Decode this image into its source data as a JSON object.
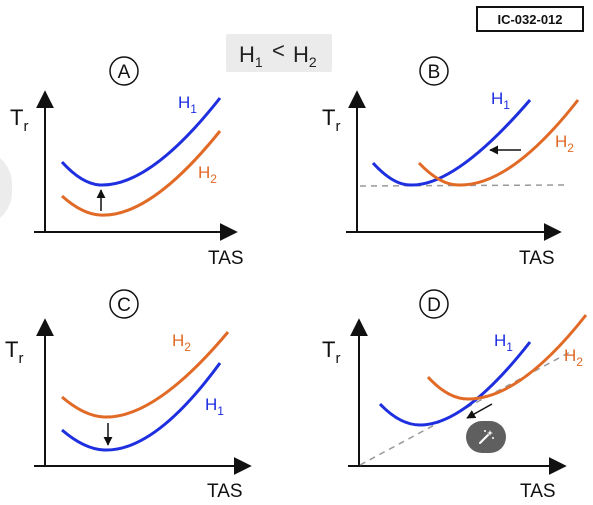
{
  "reference_code": "IC-032-012",
  "condition": {
    "h1": "H",
    "h1_sub": "1",
    "relation": "<",
    "h2": "H",
    "h2_sub": "2"
  },
  "colors": {
    "h1": "#1e2fe0",
    "h2": "#e06a26",
    "axis": "#111111",
    "dashed": "#999999"
  },
  "axis_labels": {
    "y_main": "T",
    "y_sub": "r",
    "x": "TAS"
  },
  "panels": [
    {
      "id": "A",
      "label": "A",
      "h1_label": "H",
      "h1_sub": "1",
      "h2_label": "H",
      "h2_sub": "2"
    },
    {
      "id": "B",
      "label": "B",
      "h1_label": "H",
      "h1_sub": "1",
      "h2_label": "H",
      "h2_sub": "2"
    },
    {
      "id": "C",
      "label": "C",
      "h1_label": "H",
      "h1_sub": "1",
      "h2_label": "H",
      "h2_sub": "2"
    },
    {
      "id": "D",
      "label": "D",
      "h1_label": "H",
      "h1_sub": "1",
      "h2_label": "H",
      "h2_sub": "2"
    }
  ],
  "magic_button_icon": "magic-wand-icon"
}
